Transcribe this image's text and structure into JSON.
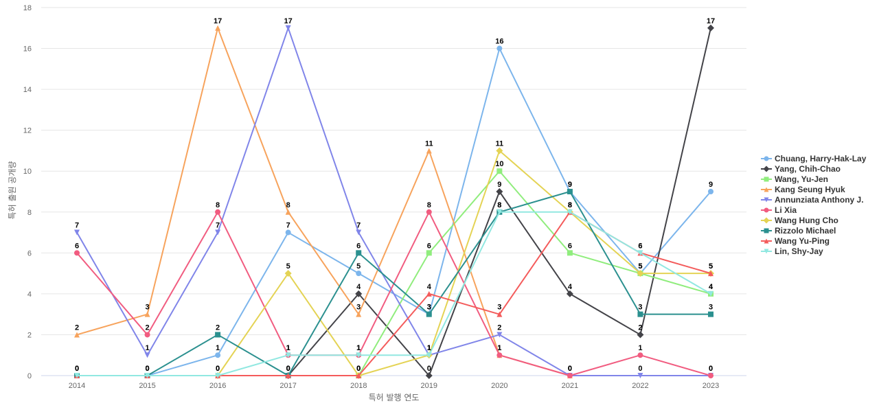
{
  "chart_data": {
    "type": "line",
    "title": "",
    "xlabel": "특허 발행 연도",
    "ylabel": "특허 출원 공개량",
    "x": [
      2014,
      2015,
      2016,
      2017,
      2018,
      2019,
      2020,
      2021,
      2022,
      2023
    ],
    "ylim": [
      0,
      18
    ],
    "yticks": [
      0,
      2,
      4,
      6,
      8,
      10,
      12,
      14,
      16,
      18
    ],
    "grid": true,
    "legend_position": "right",
    "series": [
      {
        "name": "Chuang, Harry-Hak-Lay",
        "color": "#7cb5ec",
        "marker": "circle",
        "values": [
          null,
          0,
          1,
          7,
          5,
          3,
          16,
          9,
          5,
          9
        ]
      },
      {
        "name": "Yang, Chih-Chao",
        "color": "#434348",
        "marker": "diamond",
        "values": [
          null,
          null,
          null,
          0,
          4,
          0,
          9,
          4,
          2,
          17
        ]
      },
      {
        "name": "Wang, Yu-Jen",
        "color": "#90ed7d",
        "marker": "square",
        "values": [
          null,
          null,
          null,
          null,
          0,
          6,
          10,
          6,
          5,
          4
        ]
      },
      {
        "name": "Kang Seung Hyuk",
        "color": "#f7a35c",
        "marker": "triangle",
        "values": [
          2,
          3,
          17,
          8,
          3,
          11,
          1,
          0,
          null,
          null
        ]
      },
      {
        "name": "Annunziata Anthony J.",
        "color": "#8085e9",
        "marker": "triangle-down",
        "values": [
          7,
          1,
          7,
          17,
          7,
          1,
          2,
          0,
          0,
          0
        ]
      },
      {
        "name": "Li Xia",
        "color": "#f15c80",
        "marker": "circle",
        "values": [
          6,
          2,
          8,
          1,
          1,
          8,
          1,
          0,
          1,
          0
        ]
      },
      {
        "name": "Wang Hung Cho",
        "color": "#e4d354",
        "marker": "diamond",
        "values": [
          null,
          null,
          0,
          5,
          0,
          1,
          11,
          8,
          5,
          5
        ]
      },
      {
        "name": "Rizzolo Michael",
        "color": "#2b908f",
        "marker": "square",
        "values": [
          0,
          0,
          2,
          0,
          6,
          3,
          8,
          9,
          3,
          3
        ]
      },
      {
        "name": "Wang Yu-Ping",
        "color": "#f45b5b",
        "marker": "triangle",
        "values": [
          0,
          0,
          0,
          0,
          0,
          4,
          3,
          8,
          6,
          5
        ]
      },
      {
        "name": "Lin, Shy-Jay",
        "color": "#91e8e1",
        "marker": "triangle-down",
        "values": [
          0,
          0,
          0,
          1,
          1,
          1,
          8,
          8,
          6,
          4
        ]
      }
    ]
  }
}
